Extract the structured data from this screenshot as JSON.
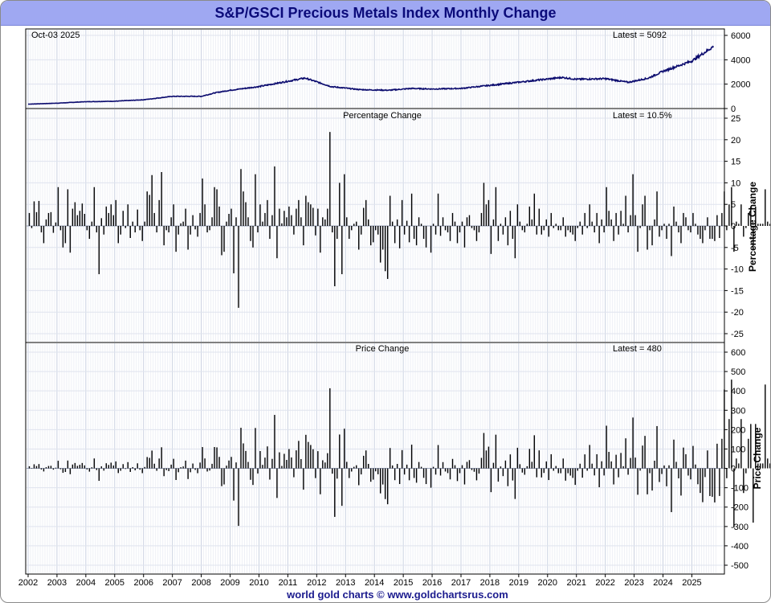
{
  "title": "S&P/GSCI Precious Metals Index Monthly Change",
  "footer": "world gold charts © www.goldchartsrus.com",
  "colors": {
    "title_bg": "#9fa8f2",
    "title_text": "#0b0b7a",
    "price_line": "#0b0b6e",
    "bars": "#000000",
    "grid": "#d8dde8"
  },
  "chart_data": [
    {
      "id": "index-level",
      "type": "line",
      "date_label": "Oct-03  2025",
      "latest_label": "Latest = 5092",
      "ylim": [
        0,
        6000
      ],
      "yticks": [
        0,
        2000,
        4000,
        6000
      ],
      "x_start": 2002.0,
      "yearly_values": [
        360,
        440,
        560,
        600,
        720,
        1000,
        1000,
        1300,
        1500,
        1800,
        2500,
        1800,
        1550,
        1500,
        1650,
        1600,
        1650,
        1900,
        2550,
        2400,
        2450,
        2150,
        2500,
        3050,
        3900,
        5092
      ],
      "yearly_x": [
        2002.0,
        2003.0,
        2004.0,
        2005.0,
        2006.0,
        2007.0,
        2008.0,
        2008.5,
        2009.0,
        2010.0,
        2011.6,
        2012.5,
        2013.5,
        2014.5,
        2015.3,
        2016.0,
        2017.0,
        2018.0,
        2020.5,
        2021.0,
        2022.0,
        2022.8,
        2023.5,
        2024.0,
        2025.0,
        2025.75
      ]
    },
    {
      "id": "percentage-change",
      "type": "bar",
      "title": "Percentage Change",
      "latest_label": "Latest = 10.5%",
      "ylabel": "Percentage Change",
      "ylim": [
        -25,
        25
      ],
      "yticks": [
        -25,
        -20,
        -15,
        -10,
        -5,
        0,
        5,
        10,
        15,
        20,
        25
      ],
      "x_start": 2002.0,
      "values": [
        3.0,
        -0.5,
        5.7,
        3.2,
        5.8,
        -1.5,
        -4.0,
        1.5,
        3.0,
        3.2,
        -1.6,
        0.8,
        9.0,
        -1.0,
        -5.0,
        -4.0,
        8.5,
        -6.2,
        4.0,
        5.5,
        2.5,
        3.5,
        5.2,
        2.8,
        -1.0,
        -3.0,
        1.0,
        9.0,
        -1.5,
        -11.2,
        1.8,
        -2.0,
        4.5,
        3.0,
        5.0,
        2.5,
        6.0,
        -4.0,
        -2.0,
        3.5,
        -0.5,
        5.0,
        -2.8,
        1.0,
        -1.5,
        3.8,
        -1.0,
        -3.5,
        1.0,
        8.0,
        7.2,
        11.8,
        3.0,
        -1.5,
        6.0,
        12.5,
        -4.5,
        -1.0,
        -1.5,
        2.0,
        5.0,
        -6.0,
        -2.0,
        0.6,
        1.0,
        4.0,
        -5.5,
        -2.0,
        2.5,
        -0.8,
        -2.5,
        3.0,
        11.0,
        5.0,
        -1.5,
        -1.0,
        2.0,
        9.0,
        8.5,
        4.5,
        -6.8,
        -6.0,
        1.0,
        2.8,
        4.0,
        -11.0,
        2.0,
        -19.0,
        13.2,
        8.0,
        5.5,
        2.0,
        -3.5,
        -5.0,
        12.0,
        -1.5,
        5.0,
        1.0,
        3.0,
        6.0,
        -3.0,
        2.5,
        13.8,
        -7.5,
        4.0,
        0.6,
        3.5,
        2.0,
        4.5,
        2.5,
        -2.0,
        4.0,
        6.0,
        2.0,
        -4.5,
        7.0,
        5.5,
        5.0,
        4.2,
        -2.2,
        4.0,
        -6.2,
        2.0,
        1.5,
        4.0,
        21.8,
        -1.5,
        -14.0,
        -3.0,
        10.0,
        -11.2,
        12.0,
        2.0,
        -3.0,
        -1.0,
        0.5,
        1.0,
        -5.5,
        -2.0,
        4.2,
        6.0,
        1.5,
        -4.5,
        -3.8,
        -1.0,
        -2.0,
        -8.5,
        -5.5,
        -10.5,
        -12.3,
        7.0,
        1.0,
        -4.0,
        1.5,
        -5.2,
        6.0,
        -2.0,
        1.2,
        -3.8,
        7.5,
        -3.0,
        -4.5,
        2.0,
        0.5,
        -3.0,
        -5.0,
        0.0,
        -6.2,
        0.5,
        -2.0,
        7.5,
        -2.3,
        2.0,
        -1.0,
        -1.5,
        -3.5,
        3.0,
        1.0,
        -4.0,
        -1.5,
        1.0,
        -5.0,
        2.0,
        2.5,
        -0.5,
        -1.0,
        -3.5,
        -1.5,
        3.0,
        10.0,
        5.0,
        6.0,
        -6.5,
        1.5,
        9.0,
        -3.5,
        0.5,
        -2.0,
        2.0,
        -4.5,
        3.5,
        -3.0,
        -7.5,
        5.0,
        1.0,
        -1.0,
        -1.5,
        0.5,
        4.5,
        1.5,
        7.5,
        -2.0,
        4.0,
        -2.0,
        -1.0,
        1.5,
        -2.5,
        3.0,
        -0.5,
        0.5,
        -1.0,
        -1.0,
        2.0,
        -2.5,
        -1.0,
        -1.5,
        -2.0,
        -3.5,
        -0.5,
        1.0,
        -2.0,
        3.0,
        -0.5,
        5.0,
        1.0,
        -1.5,
        3.0,
        -4.0,
        1.5,
        -1.5,
        9.0,
        3.5,
        1.5,
        -3.5,
        3.0,
        -2.0,
        3.5,
        0.5,
        7.0,
        -1.5,
        2.5,
        12.0,
        2.5,
        -6.0,
        -0.5,
        5.0,
        7.0,
        -5.5,
        -1.0,
        -4.5,
        1.5,
        8.0,
        -2.5,
        -1.0,
        0.5,
        -3.0,
        0.5,
        -7.0,
        4.5,
        1.0,
        -1.5,
        -4.0,
        3.0,
        2.0,
        -1.0,
        -1.5,
        3.0,
        0.5,
        -2.0,
        -3.0,
        -4.0,
        -1.0,
        2.0,
        -3.0,
        -3.0,
        -3.5,
        2.5,
        -2.8,
        3.0,
        8.0,
        -1.0,
        5.0,
        9.0,
        -6.0,
        1.0,
        0.5,
        5.0,
        -2.5,
        -0.5,
        3.0,
        4.5,
        -5.5,
        4.5,
        0.5,
        0.5,
        0.5,
        8.5,
        1.0,
        0.5,
        -0.8,
        -0.5,
        9.0,
        -3.0,
        5.5,
        2.0,
        5.0,
        3.0,
        -1.0,
        -1.0,
        5.5,
        2.0,
        10.0,
        -1.0,
        1.5,
        1.0,
        4.5,
        1.0,
        5.5,
        2.0,
        10.5
      ]
    },
    {
      "id": "price-change",
      "type": "bar",
      "title": "Price Change",
      "latest_label": "Latest = 480",
      "ylabel": "Price Change",
      "ylim": [
        -500,
        600
      ],
      "yticks": [
        -500,
        -400,
        -300,
        -200,
        -100,
        0,
        100,
        200,
        300,
        400,
        500,
        600
      ],
      "x_start": 2002.0
    }
  ],
  "x_axis": {
    "years": [
      "2002",
      "2003",
      "2004",
      "2005",
      "2006",
      "2007",
      "2008",
      "2009",
      "2010",
      "2011",
      "2012",
      "2013",
      "2014",
      "2015",
      "2016",
      "2017",
      "2018",
      "2019",
      "2020",
      "2021",
      "2022",
      "2023",
      "2024",
      "2025"
    ],
    "start": 2002.0,
    "end": 2025.85
  }
}
